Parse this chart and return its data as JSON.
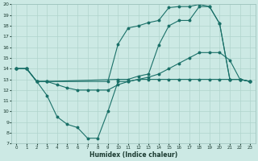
{
  "xlabel": "Humidex (Indice chaleur)",
  "xlim": [
    -0.5,
    23.5
  ],
  "ylim": [
    7,
    20
  ],
  "xticks": [
    0,
    1,
    2,
    3,
    4,
    5,
    6,
    7,
    8,
    9,
    10,
    11,
    12,
    13,
    14,
    15,
    16,
    17,
    18,
    19,
    20,
    21,
    22,
    23
  ],
  "yticks": [
    7,
    8,
    9,
    10,
    11,
    12,
    13,
    14,
    15,
    16,
    17,
    18,
    19,
    20
  ],
  "bg_color": "#cce9e4",
  "line_color": "#1a7068",
  "grid_color": "#b0d4cc",
  "lines": [
    {
      "x": [
        0,
        1,
        2,
        3,
        10,
        11,
        12,
        13,
        14,
        15,
        16,
        17,
        18,
        19,
        20,
        21,
        22,
        23
      ],
      "y": [
        14,
        14,
        12.8,
        12.8,
        13,
        13,
        13.3,
        13.5,
        16.2,
        18,
        18.5,
        18.5,
        19.8,
        19.8,
        18.2,
        13,
        13,
        12.8
      ]
    },
    {
      "x": [
        0,
        1,
        2,
        3,
        9,
        10,
        11,
        12,
        13,
        14,
        15,
        16,
        17,
        18,
        19,
        20,
        21,
        22,
        23
      ],
      "y": [
        14,
        14,
        12.8,
        12.8,
        12.8,
        16.3,
        17.8,
        18,
        18.3,
        18.5,
        19.7,
        19.8,
        19.8,
        20,
        19.8,
        18.2,
        13,
        13,
        12.8
      ]
    },
    {
      "x": [
        0,
        1,
        2,
        3,
        4,
        5,
        6,
        7,
        8,
        9,
        10,
        11,
        12,
        13,
        14,
        15,
        16,
        17,
        18,
        19,
        20,
        21,
        22,
        23
      ],
      "y": [
        14,
        14,
        12.8,
        12.8,
        12.5,
        12.2,
        12,
        12,
        12,
        12,
        12.5,
        12.8,
        13,
        13.2,
        13.5,
        14,
        14.5,
        15,
        15.5,
        15.5,
        15.5,
        14.8,
        13,
        12.8
      ]
    },
    {
      "x": [
        0,
        1,
        2,
        3,
        4,
        5,
        6,
        7,
        8,
        9,
        10,
        11,
        12,
        13,
        14,
        15,
        16,
        17,
        18,
        19,
        20,
        21,
        22,
        23
      ],
      "y": [
        14,
        14,
        12.8,
        11.5,
        9.5,
        8.8,
        8.5,
        7.5,
        7.5,
        10.0,
        12.8,
        12.8,
        13,
        13,
        13,
        13,
        13,
        13,
        13,
        13,
        13,
        13,
        13,
        12.8
      ]
    }
  ]
}
